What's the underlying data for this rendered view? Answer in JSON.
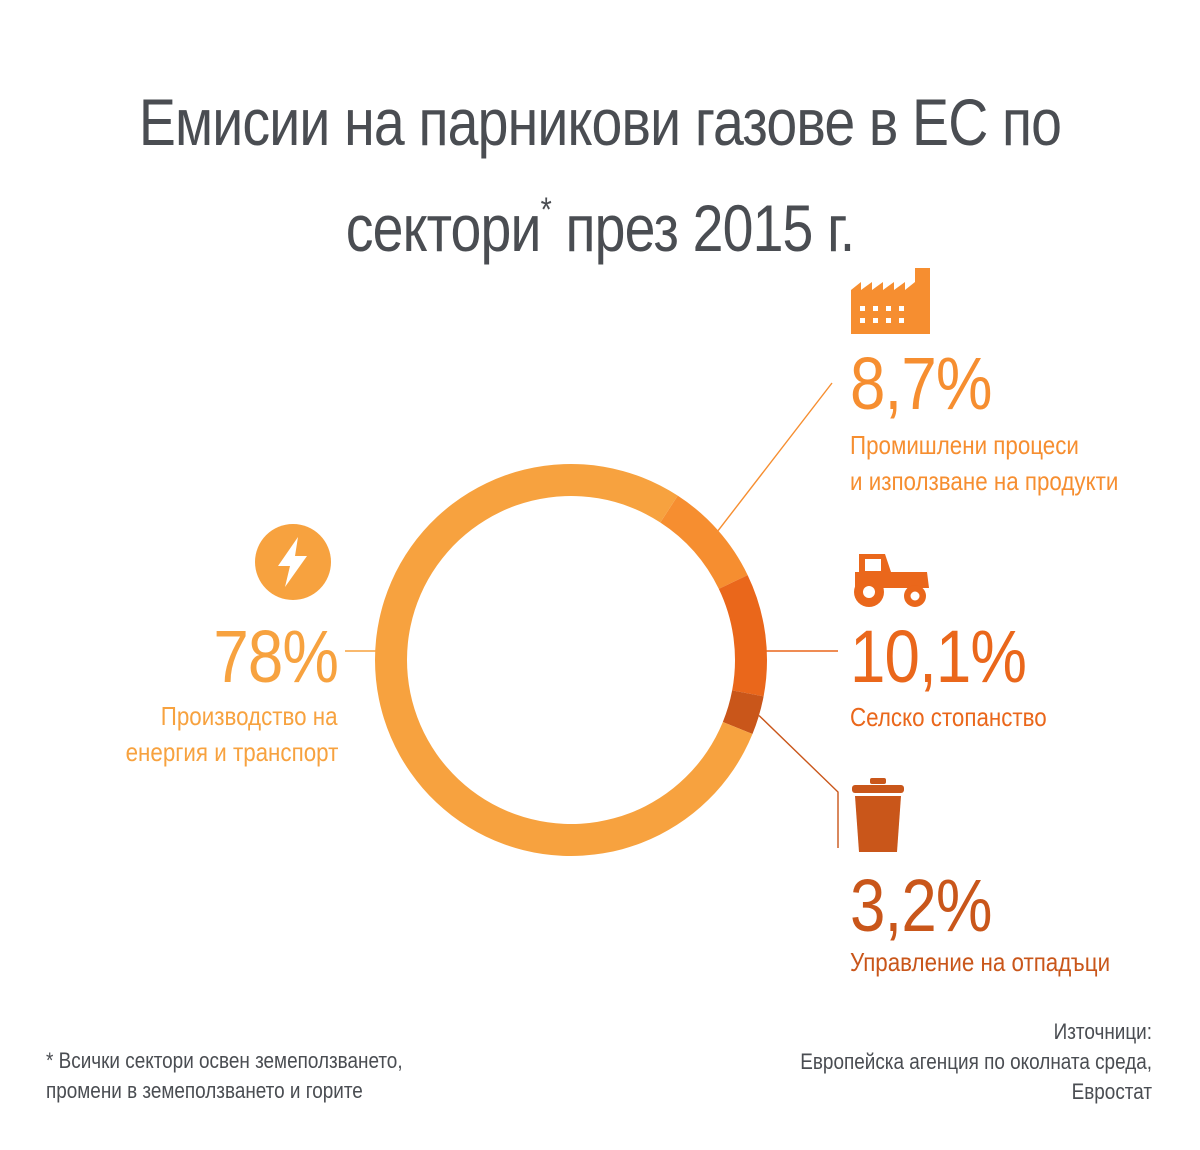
{
  "title": {
    "line1": "Емисии на парникови газове в ЕС по",
    "line2_a": "сектори",
    "line2_star": "*",
    "line2_b": " през 2015 г."
  },
  "chart_data": {
    "type": "pie",
    "donut": true,
    "title": "Емисии на парникови газове в ЕС по сектори* през 2015 г.",
    "slices": [
      {
        "label": "Производство на енергия и транспорт",
        "value": 78,
        "display": "78%",
        "color": "#f7a23f",
        "icon": "lightning-icon"
      },
      {
        "label": "Промишлени процеси и използване на продукти",
        "value": 8.7,
        "display": "8,7%",
        "color": "#f68e30",
        "icon": "factory-icon"
      },
      {
        "label": "Селско стопанство",
        "value": 10.1,
        "display": "10,1%",
        "color": "#ea671b",
        "icon": "tractor-icon"
      },
      {
        "label": "Управление на отпадъци",
        "value": 3.2,
        "display": "3,2%",
        "color": "#c9561a",
        "icon": "trash-can-icon"
      }
    ]
  },
  "labels": {
    "energy": {
      "pct": "78%",
      "line1": "Производство на",
      "line2": "енергия и транспорт",
      "color": "#f7a23f"
    },
    "industry": {
      "pct": "8,7%",
      "line1": "Промишлени процеси",
      "line2": "и използване на продукти",
      "color": "#f68e30"
    },
    "agriculture": {
      "pct": "10,1%",
      "line1": "Селско стопанство",
      "color": "#ea671b"
    },
    "waste": {
      "pct": "3,2%",
      "line1": "Управление на отпадъци",
      "color": "#c9561a"
    }
  },
  "footnote": {
    "line1": "* Всички сектори освен земеползването,",
    "line2": "промени в земеползването и горите"
  },
  "sources": {
    "line1": "Източници:",
    "line2": "Европейска агенция по околната среда,",
    "line3": "Евростат"
  }
}
